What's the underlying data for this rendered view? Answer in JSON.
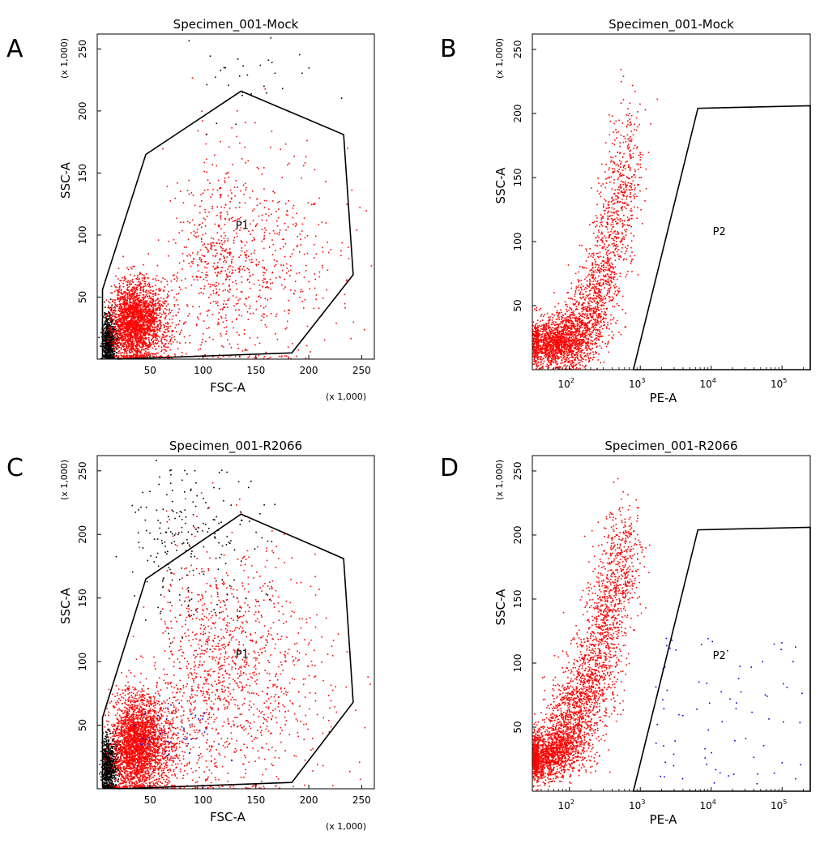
{
  "chart_data": [
    {
      "panel": "A",
      "type": "scatter",
      "title": "Specimen_001-Mock",
      "xlabel": "FSC-A",
      "ylabel": "SSC-A",
      "x_multiplier_label": "(x 1,000)",
      "y_multiplier_label": "(x 1,000)",
      "xscale": "linear",
      "xlim": [
        0,
        262
      ],
      "ylim": [
        0,
        262
      ],
      "xticks": [
        {
          "v": 50,
          "label": "50"
        },
        {
          "v": 100,
          "label": "100"
        },
        {
          "v": 150,
          "label": "150"
        },
        {
          "v": 200,
          "label": "200"
        },
        {
          "v": 250,
          "label": "250"
        }
      ],
      "yticks": [
        {
          "v": 50,
          "label": "50"
        },
        {
          "v": 100,
          "label": "100"
        },
        {
          "v": 150,
          "label": "150"
        },
        {
          "v": 200,
          "label": "200"
        },
        {
          "v": 250,
          "label": "250"
        }
      ],
      "gate": {
        "name": "P1",
        "label_at": [
          137,
          105
        ],
        "polygon": [
          [
            5,
            56
          ],
          [
            46,
            165
          ],
          [
            136,
            216
          ],
          [
            233,
            181
          ],
          [
            242,
            68
          ],
          [
            184,
            5
          ],
          [
            20,
            0
          ],
          [
            5,
            2
          ]
        ]
      },
      "colors": {
        "gated": "#ff0000",
        "ungated": "#000000",
        "positive": "#0000cc"
      },
      "populations": [
        {
          "name": "debris",
          "color": "#000000",
          "count": 700,
          "cx": 8,
          "cy": 16,
          "sx": 5,
          "sy": 10
        },
        {
          "name": "main",
          "color": "#ff0000",
          "count": 2600,
          "cx": 28,
          "cy": 30,
          "sx": 18,
          "sy": 16
        },
        {
          "name": "scatter",
          "color": "#ff0000",
          "count": 900,
          "cx": 110,
          "cy": 80,
          "sx": 55,
          "sy": 45
        },
        {
          "name": "outliers",
          "color": "#000000",
          "count": 35,
          "cx": 120,
          "cy": 225,
          "sx": 60,
          "sy": 15
        }
      ]
    },
    {
      "panel": "B",
      "type": "scatter",
      "title": "Specimen_001-Mock",
      "xlabel": "PE-A",
      "ylabel": "SSC-A",
      "y_multiplier_label": "(x 1,000)",
      "xscale": "log",
      "xlim": [
        30,
        250000
      ],
      "ylim": [
        0,
        262
      ],
      "xticks": [
        {
          "v": 100,
          "base": "10",
          "exp": "2"
        },
        {
          "v": 1000,
          "base": "10",
          "exp": "3"
        },
        {
          "v": 10000,
          "base": "10",
          "exp": "4"
        },
        {
          "v": 100000,
          "base": "10",
          "exp": "5"
        }
      ],
      "yticks": [
        {
          "v": 50,
          "label": "50"
        },
        {
          "v": 100,
          "label": "100"
        },
        {
          "v": 150,
          "label": "150"
        },
        {
          "v": 200,
          "label": "200"
        },
        {
          "v": 250,
          "label": "250"
        }
      ],
      "gate": {
        "name": "P2",
        "label_at": [
          13000,
          105
        ],
        "polygon": [
          [
            800,
            0
          ],
          [
            6500,
            204
          ],
          [
            250000,
            206
          ],
          [
            250000,
            0
          ]
        ]
      },
      "colors": {
        "gated": "#ff0000",
        "positive": "#0000cc"
      },
      "populations": [
        {
          "name": "main",
          "color": "#ff0000",
          "count": 3000,
          "mode": "curve",
          "logx0": 1.6,
          "logx1": 2.85,
          "y0": 20,
          "y1": 195,
          "power": 3.2,
          "spread": 0.22
        }
      ]
    },
    {
      "panel": "C",
      "type": "scatter",
      "title": "Specimen_001-R2066",
      "xlabel": "FSC-A",
      "ylabel": "SSC-A",
      "x_multiplier_label": "(x 1,000)",
      "y_multiplier_label": "(x 1,000)",
      "xscale": "linear",
      "xlim": [
        0,
        262
      ],
      "ylim": [
        0,
        262
      ],
      "xticks": [
        {
          "v": 50,
          "label": "50"
        },
        {
          "v": 100,
          "label": "100"
        },
        {
          "v": 150,
          "label": "150"
        },
        {
          "v": 200,
          "label": "200"
        },
        {
          "v": 250,
          "label": "250"
        }
      ],
      "yticks": [
        {
          "v": 50,
          "label": "50"
        },
        {
          "v": 100,
          "label": "100"
        },
        {
          "v": 150,
          "label": "150"
        },
        {
          "v": 200,
          "label": "200"
        },
        {
          "v": 250,
          "label": "250"
        }
      ],
      "gate": {
        "name": "P1",
        "label_at": [
          137,
          103
        ],
        "polygon": [
          [
            5,
            56
          ],
          [
            46,
            165
          ],
          [
            136,
            216
          ],
          [
            233,
            181
          ],
          [
            242,
            68
          ],
          [
            184,
            5
          ],
          [
            20,
            0
          ],
          [
            5,
            2
          ]
        ]
      },
      "colors": {
        "gated": "#ff0000",
        "ungated": "#000000",
        "positive": "#0000cc"
      },
      "populations": [
        {
          "name": "debris",
          "color": "#000000",
          "count": 800,
          "cx": 8,
          "cy": 18,
          "sx": 5,
          "sy": 12
        },
        {
          "name": "main",
          "color": "#ff0000",
          "count": 3000,
          "cx": 30,
          "cy": 35,
          "sx": 20,
          "sy": 20
        },
        {
          "name": "scatter",
          "color": "#ff0000",
          "count": 1300,
          "cx": 100,
          "cy": 90,
          "sx": 55,
          "sy": 50
        },
        {
          "name": "outliers",
          "color": "#000000",
          "count": 220,
          "cx": 70,
          "cy": 200,
          "sx": 45,
          "sy": 35
        },
        {
          "name": "positive",
          "color": "#0000cc",
          "count": 50,
          "cx": 60,
          "cy": 40,
          "sx": 30,
          "sy": 15
        }
      ]
    },
    {
      "panel": "D",
      "type": "scatter",
      "title": "Specimen_001-R2066",
      "xlabel": "PE-A",
      "ylabel": "SSC-A",
      "y_multiplier_label": "(x 1,000)",
      "xscale": "log",
      "xlim": [
        30,
        250000
      ],
      "ylim": [
        0,
        262
      ],
      "xticks": [
        {
          "v": 100,
          "base": "10",
          "exp": "2"
        },
        {
          "v": 1000,
          "base": "10",
          "exp": "3"
        },
        {
          "v": 10000,
          "base": "10",
          "exp": "4"
        },
        {
          "v": 100000,
          "base": "10",
          "exp": "5"
        }
      ],
      "yticks": [
        {
          "v": 50,
          "label": "50"
        },
        {
          "v": 100,
          "label": "100"
        },
        {
          "v": 150,
          "label": "150"
        },
        {
          "v": 200,
          "label": "200"
        },
        {
          "v": 250,
          "label": "250"
        }
      ],
      "gate": {
        "name": "P2",
        "label_at": [
          13000,
          103
        ],
        "polygon": [
          [
            800,
            0
          ],
          [
            6500,
            204
          ],
          [
            250000,
            206
          ],
          [
            250000,
            0
          ]
        ]
      },
      "colors": {
        "gated": "#ff0000",
        "positive": "#0000cc"
      },
      "populations": [
        {
          "name": "main",
          "color": "#ff0000",
          "count": 3500,
          "mode": "curve",
          "logx0": 1.55,
          "logx1": 2.8,
          "y0": 25,
          "y1": 205,
          "power": 1.9,
          "spread": 0.24
        },
        {
          "name": "positive",
          "color": "#0000cc",
          "count": 75,
          "mode": "uniform-log",
          "logx0": 3.2,
          "logx1": 5.3,
          "y0": 5,
          "y1": 120
        }
      ]
    }
  ]
}
